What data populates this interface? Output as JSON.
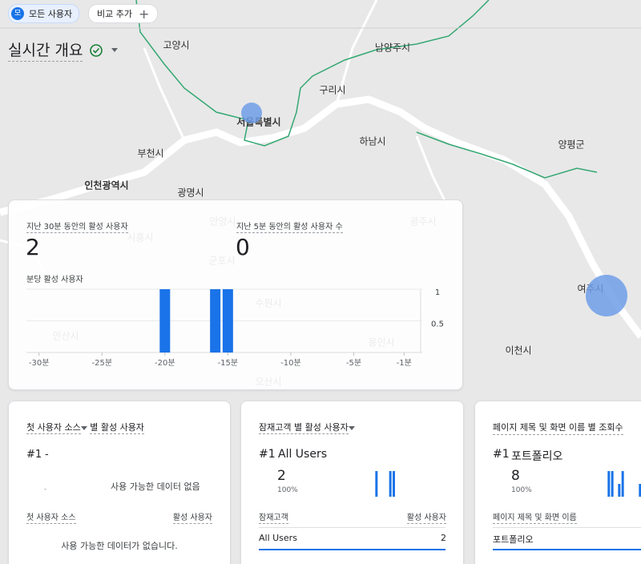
{
  "toolbar": {
    "audience_icon": "모",
    "audience": "모든 사용자",
    "compare": "비교 추가"
  },
  "title": "실시간 개요",
  "map": {
    "labels": [
      "고양시",
      "남양주시",
      "구리시",
      "서울특별시",
      "하남시",
      "양평군",
      "부천시",
      "인천광역시",
      "광명시",
      "안양시",
      "시흥시",
      "광주시",
      "군포시",
      "수원시",
      "안산시",
      "용인시",
      "오산시",
      "여주시",
      "이천시"
    ]
  },
  "realtime_card": {
    "active_30min": {
      "label": "지난 30분 동안의 활성 사용자",
      "value": 2
    },
    "active_5min": {
      "label": "지난 5분 동안의 활성 사용자 수",
      "value": 0
    },
    "chart": {
      "type": "bar",
      "title": "분당 활성 사용자",
      "x": [
        -30,
        -29,
        -28,
        -27,
        -26,
        -25,
        -24,
        -23,
        -22,
        -21,
        -20,
        -19,
        -18,
        -17,
        -16,
        -15,
        -14,
        -13,
        -12,
        -11,
        -10,
        -9,
        -8,
        -7,
        -6,
        -5,
        -4,
        -3,
        -2,
        -1
      ],
      "values": [
        0,
        0,
        0,
        0,
        0,
        0,
        0,
        0,
        0,
        0,
        1,
        0,
        0,
        0,
        1,
        1,
        0,
        0,
        0,
        0,
        0,
        0,
        0,
        0,
        0,
        0,
        0,
        0,
        0,
        0
      ],
      "color": "#1a73e8",
      "xlim": [
        -31,
        0
      ],
      "xticks": [
        {
          "value": -30,
          "label": "-30분"
        },
        {
          "value": -25,
          "label": "-25분"
        },
        {
          "value": -20,
          "label": "-20분"
        },
        {
          "value": -15,
          "label": "-15분"
        },
        {
          "value": -10,
          "label": "-10분"
        },
        {
          "value": -5,
          "label": "-5분"
        },
        {
          "value": -1,
          "label": "-1분"
        }
      ],
      "ylim": [
        0,
        1
      ],
      "yticks": [
        0.5,
        1
      ],
      "grid": true
    }
  },
  "first_source_card": {
    "title_dimension": "첫 사용자 소스",
    "title_suffix": "별 활성 사용자",
    "top_rank": "#1",
    "top_name": "-",
    "top_value": "-",
    "empty_chart": "사용 가능한 데이터 없음",
    "columns": [
      "첫 사용자 소스",
      "활성 사용자"
    ],
    "empty_table": "사용 가능한 데이터가 없습니다."
  },
  "audience_card": {
    "title": "잠재고객 별 활성 사용자",
    "top_rank": "#1",
    "top_name": "All Users",
    "top_value": 2,
    "top_share": "100%",
    "sparkline": {
      "values": [
        0,
        0,
        0,
        0,
        0,
        0,
        0,
        0,
        0,
        0,
        1,
        0,
        0,
        0,
        1,
        1,
        0,
        0,
        0,
        0,
        0,
        0,
        0,
        0,
        0,
        0,
        0,
        0,
        0,
        0
      ],
      "color": "#1a73e8"
    },
    "columns": [
      "잠재고객",
      "활성 사용자"
    ],
    "rows": [
      [
        "All Users",
        2
      ]
    ]
  },
  "page_card": {
    "title": "페이지 제목 및 화면 이름 별 조회수",
    "top_rank": "#1",
    "top_name": "포트폴리오",
    "top_value": 8,
    "top_share": "100%",
    "sparkline": {
      "values": [
        0,
        0,
        0,
        0,
        0,
        0,
        0,
        0,
        0,
        0,
        2,
        2,
        0,
        1,
        2,
        0,
        0,
        0,
        0,
        1,
        0,
        0,
        0,
        0,
        0,
        0,
        0,
        0,
        0,
        0
      ],
      "color": "#1a73e8"
    },
    "columns": [
      "페이지 제목 및 화면 이름"
    ],
    "rows": [
      [
        "포트폴리오"
      ]
    ]
  }
}
